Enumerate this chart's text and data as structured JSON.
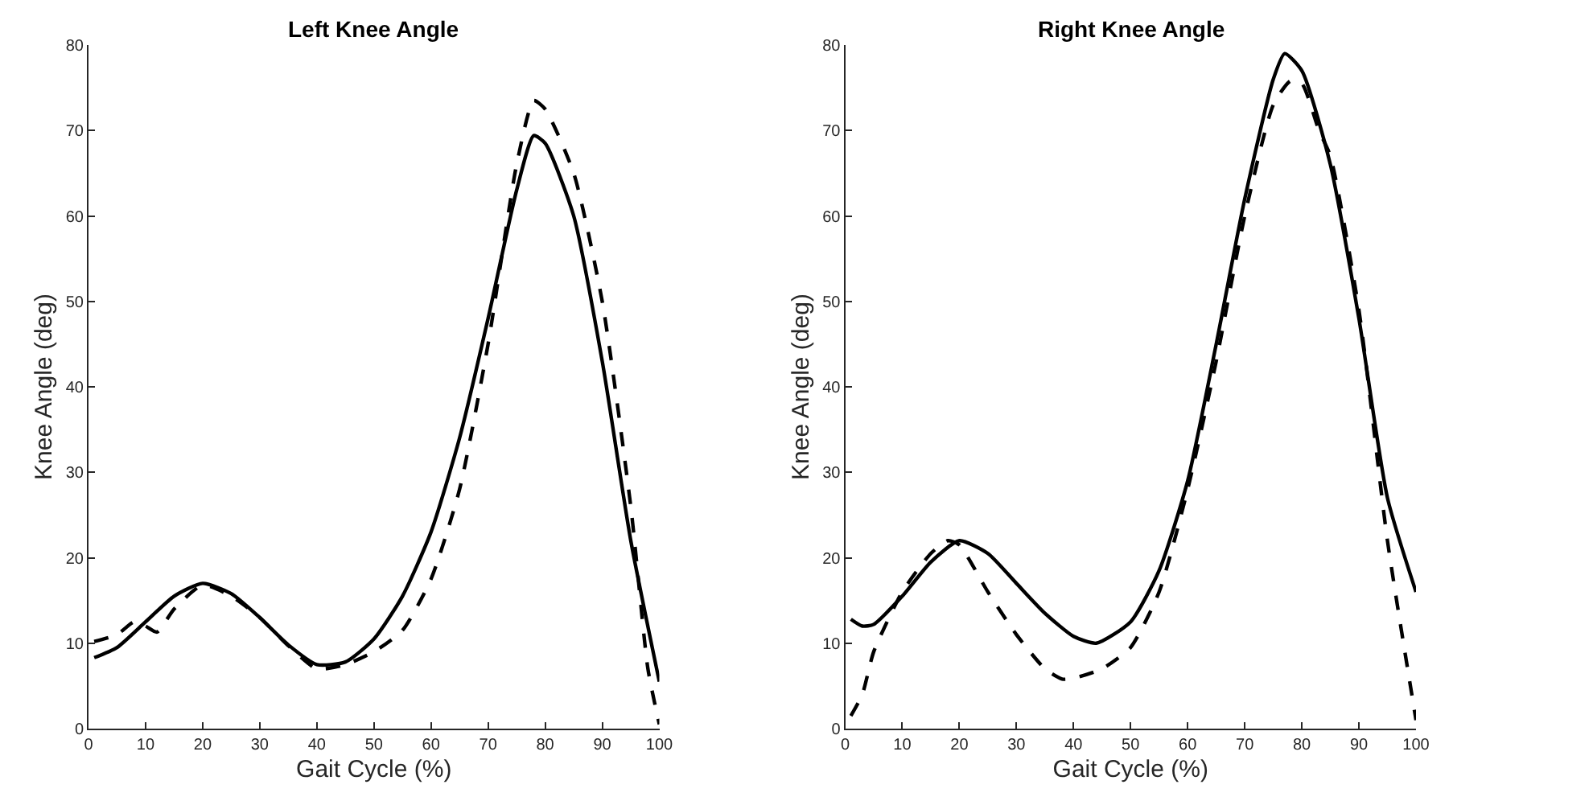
{
  "chart_data": [
    {
      "type": "line",
      "title": "Left Knee Angle",
      "xlabel": "Gait Cycle (%)",
      "ylabel": "Knee Angle (deg)",
      "xlim": [
        0,
        100
      ],
      "xticks": [
        0,
        10,
        20,
        30,
        40,
        50,
        60,
        70,
        80,
        90,
        100
      ],
      "ylim": [
        0,
        80
      ],
      "yticks": [
        0,
        10,
        20,
        30,
        40,
        50,
        60,
        70,
        80
      ],
      "marker": "none",
      "series": [
        {
          "color": "#000000",
          "line_style": "dashed",
          "x": [
            1,
            5,
            8,
            10,
            12,
            15,
            20,
            25,
            30,
            35,
            40,
            45,
            50,
            55,
            60,
            65,
            70,
            75,
            78,
            80,
            85,
            90,
            95,
            98,
            100
          ],
          "values": [
            10.2,
            11,
            12.5,
            12,
            11.3,
            14,
            16.8,
            15.5,
            13,
            9.7,
            7,
            7.5,
            9,
            11.5,
            17.5,
            28,
            45,
            66,
            73.5,
            72.5,
            65,
            50,
            26,
            7,
            0.5
          ]
        },
        {
          "color": "#000000",
          "line_style": "solid",
          "x": [
            1,
            5,
            10,
            15,
            20,
            25,
            30,
            35,
            40,
            45,
            50,
            55,
            60,
            65,
            70,
            75,
            78,
            80,
            85,
            90,
            95,
            100
          ],
          "values": [
            8.3,
            9.5,
            12.5,
            15.5,
            17,
            15.8,
            13,
            9.8,
            7.5,
            7.8,
            10.5,
            15.5,
            23,
            34,
            48,
            63,
            69.4,
            68.5,
            60,
            43,
            22,
            5.5
          ]
        }
      ]
    },
    {
      "type": "line",
      "title": "Right Knee Angle",
      "xlabel": "Gait Cycle (%)",
      "ylabel": "Knee Angle (deg)",
      "xlim": [
        0,
        100
      ],
      "xticks": [
        0,
        10,
        20,
        30,
        40,
        50,
        60,
        70,
        80,
        90,
        100
      ],
      "ylim": [
        0,
        80
      ],
      "yticks": [
        0,
        10,
        20,
        30,
        40,
        50,
        60,
        70,
        80
      ],
      "marker": "none",
      "series": [
        {
          "color": "#000000",
          "line_style": "dashed",
          "x": [
            1,
            3,
            5,
            10,
            15,
            18,
            20,
            25,
            30,
            35,
            38,
            40,
            45,
            50,
            55,
            60,
            65,
            70,
            75,
            78,
            80,
            83,
            85,
            90,
            95,
            100
          ],
          "values": [
            1.5,
            4,
            9,
            16,
            20.5,
            22,
            21.5,
            16,
            11,
            7,
            5.8,
            5.9,
            7,
            9.5,
            16,
            28,
            43,
            60,
            73,
            75.8,
            75.5,
            70,
            67,
            49,
            22,
            1
          ]
        },
        {
          "color": "#000000",
          "line_style": "solid",
          "x": [
            1,
            3,
            5,
            10,
            15,
            20,
            25,
            30,
            35,
            40,
            44,
            50,
            55,
            60,
            65,
            70,
            75,
            77,
            80,
            85,
            90,
            95,
            100
          ],
          "values": [
            12.8,
            12,
            12.2,
            15.5,
            19.5,
            22,
            20.5,
            17,
            13.5,
            10.8,
            10,
            12.5,
            18.5,
            29,
            45,
            62,
            76,
            79,
            77,
            66,
            48,
            27,
            16
          ]
        }
      ]
    }
  ]
}
